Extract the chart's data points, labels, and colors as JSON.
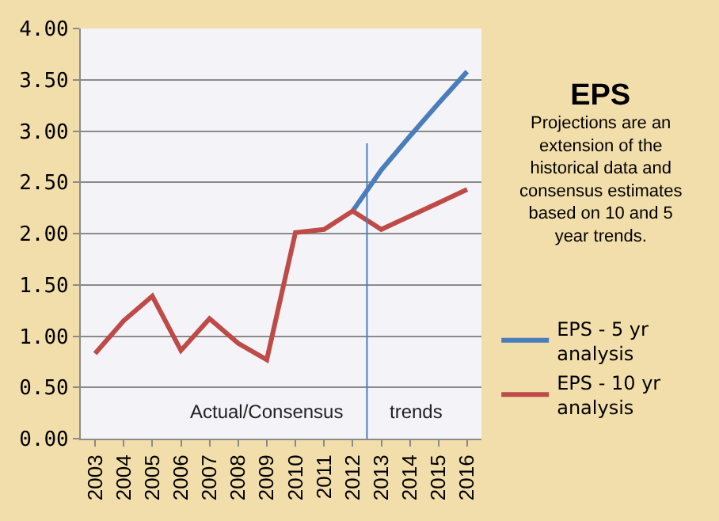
{
  "chart_data": {
    "type": "line",
    "title": "EPS",
    "subtitle": "Projections are an extension of the historical data and consensus estimates based on 10 and 5 year trends.",
    "categories": [
      "2003",
      "2004",
      "2005",
      "2006",
      "2007",
      "2008",
      "2009",
      "2010",
      "2011",
      "2012",
      "2013",
      "2014",
      "2015",
      "2016"
    ],
    "series": [
      {
        "name": "EPS - 5 yr analysis",
        "color": "#4a7ebb",
        "values": [
          null,
          null,
          null,
          null,
          null,
          null,
          null,
          null,
          null,
          2.22,
          2.62,
          2.95,
          3.27,
          3.58
        ]
      },
      {
        "name": "EPS - 10 yr analysis",
        "color": "#be4b48",
        "values": [
          0.83,
          1.15,
          1.39,
          0.86,
          1.17,
          0.93,
          0.77,
          2.01,
          2.04,
          2.22,
          2.04,
          2.17,
          2.3,
          2.43
        ]
      }
    ],
    "ylim": [
      0,
      4
    ],
    "yticks": [
      {
        "value": 0,
        "label": "0.00"
      },
      {
        "value": 0.5,
        "label": "0.50"
      },
      {
        "value": 1,
        "label": "1.00"
      },
      {
        "value": 1.5,
        "label": "1.50"
      },
      {
        "value": 2,
        "label": "2.00"
      },
      {
        "value": 2.5,
        "label": "2.50"
      },
      {
        "value": 3,
        "label": "3.00"
      },
      {
        "value": 3.5,
        "label": "3.50"
      },
      {
        "value": 4,
        "label": "4.00"
      }
    ],
    "ref_lines": [
      {
        "axis": "x",
        "value": "2012",
        "color": "#4a7ebb"
      }
    ],
    "annotations": [
      "Actual/Consensus",
      "trends"
    ],
    "grid": "y",
    "legend": "right",
    "marker": "none",
    "line_style": "solid"
  }
}
